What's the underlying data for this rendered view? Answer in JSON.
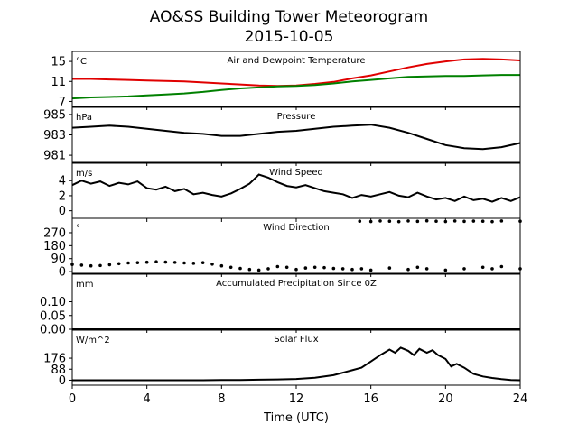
{
  "title": "AO&SS Building Tower Meteorogram",
  "subtitle": "2015-10-05",
  "chart_data": [
    {
      "type": "line",
      "title": "Air and Dewpoint Temperature",
      "unit": "°C",
      "xlim": [
        0,
        24
      ],
      "ylim": [
        6,
        17
      ],
      "yticks": [
        7,
        11,
        15
      ],
      "series": [
        {
          "color": "#e00000",
          "x": [
            0,
            1,
            2,
            3,
            4,
            5,
            6,
            7,
            8,
            9,
            10,
            11,
            12,
            13,
            14,
            15,
            16,
            17,
            18,
            19,
            20,
            21,
            22,
            23,
            24
          ],
          "y": [
            11.5,
            11.5,
            11.4,
            11.3,
            11.2,
            11.1,
            11.0,
            10.8,
            10.6,
            10.4,
            10.2,
            10.1,
            10.2,
            10.5,
            10.9,
            11.6,
            12.2,
            13.0,
            13.8,
            14.5,
            15.0,
            15.4,
            15.5,
            15.4,
            15.2
          ]
        },
        {
          "color": "#008000",
          "x": [
            0,
            1,
            2,
            3,
            4,
            5,
            6,
            7,
            8,
            9,
            10,
            11,
            12,
            13,
            14,
            15,
            16,
            17,
            18,
            19,
            20,
            21,
            22,
            23,
            24
          ],
          "y": [
            7.6,
            7.8,
            7.9,
            8.0,
            8.2,
            8.4,
            8.6,
            8.9,
            9.3,
            9.6,
            9.8,
            10.0,
            10.1,
            10.3,
            10.6,
            11.0,
            11.3,
            11.6,
            11.9,
            12.0,
            12.1,
            12.1,
            12.2,
            12.3,
            12.3
          ]
        }
      ]
    },
    {
      "type": "line",
      "title": "Pressure",
      "unit": "hPa",
      "xlim": [
        0,
        24
      ],
      "ylim": [
        980.3,
        985.7
      ],
      "yticks": [
        981,
        983,
        985
      ],
      "series": [
        {
          "color": "#000000",
          "x": [
            0,
            1,
            2,
            3,
            4,
            5,
            6,
            7,
            8,
            9,
            10,
            11,
            12,
            13,
            14,
            15,
            16,
            17,
            18,
            19,
            20,
            21,
            22,
            23,
            24
          ],
          "y": [
            983.7,
            983.8,
            983.9,
            983.8,
            983.6,
            983.4,
            983.2,
            983.1,
            982.9,
            982.9,
            983.1,
            983.3,
            983.4,
            983.6,
            983.8,
            983.9,
            984.0,
            983.7,
            983.2,
            982.6,
            982.0,
            981.7,
            981.6,
            981.8,
            982.2
          ]
        }
      ]
    },
    {
      "type": "line",
      "title": "Wind Speed",
      "unit": "m/s",
      "xlim": [
        0,
        24
      ],
      "ylim": [
        -1,
        6.3
      ],
      "yticks": [
        0,
        2,
        4
      ],
      "series": [
        {
          "color": "#000000",
          "x": [
            0,
            0.5,
            1,
            1.5,
            2,
            2.5,
            3,
            3.5,
            4,
            4.5,
            5,
            5.5,
            6,
            6.5,
            7,
            7.5,
            8,
            8.5,
            9,
            9.5,
            10,
            10.5,
            11,
            11.5,
            12,
            12.5,
            13,
            13.5,
            14,
            14.5,
            15,
            15.5,
            16,
            16.5,
            17,
            17.5,
            18,
            18.5,
            19,
            19.5,
            20,
            20.5,
            21,
            21.5,
            22,
            22.5,
            23,
            23.5,
            24
          ],
          "y": [
            3.4,
            4.0,
            3.6,
            3.9,
            3.3,
            3.7,
            3.5,
            3.9,
            3.0,
            2.8,
            3.2,
            2.6,
            2.9,
            2.2,
            2.4,
            2.1,
            1.9,
            2.3,
            2.9,
            3.6,
            4.8,
            4.4,
            3.8,
            3.3,
            3.1,
            3.4,
            3.0,
            2.6,
            2.4,
            2.2,
            1.7,
            2.1,
            1.9,
            2.2,
            2.5,
            2.0,
            1.8,
            2.4,
            1.9,
            1.5,
            1.7,
            1.3,
            1.9,
            1.4,
            1.6,
            1.2,
            1.7,
            1.3,
            1.8
          ]
        }
      ]
    },
    {
      "type": "scatter",
      "title": "Wind Direction",
      "unit": "°",
      "xlim": [
        0,
        24
      ],
      "ylim": [
        -12,
        370
      ],
      "yticks": [
        0,
        90,
        180,
        270
      ],
      "series": [
        {
          "color": "#000000",
          "x": [
            0,
            0.5,
            1,
            1.5,
            2,
            2.5,
            3,
            3.5,
            4,
            4.5,
            5,
            5.5,
            6,
            6.5,
            7,
            7.5,
            8,
            8.5,
            9,
            9.5,
            10,
            10.5,
            11,
            11.5,
            12,
            12.5,
            13,
            13.5,
            14,
            14.5,
            15,
            15.5,
            16,
            17,
            18,
            18.5,
            19,
            20,
            21,
            22,
            22.5,
            23,
            24
          ],
          "y": [
            50,
            45,
            40,
            42,
            48,
            55,
            60,
            62,
            65,
            68,
            66,
            64,
            60,
            58,
            62,
            52,
            40,
            30,
            22,
            15,
            10,
            20,
            35,
            30,
            15,
            25,
            30,
            28,
            22,
            20,
            15,
            20,
            10,
            25,
            15,
            30,
            20,
            10,
            20,
            30,
            20,
            35,
            20
          ]
        },
        {
          "color": "#000000",
          "x": [
            15.4,
            16,
            16.5,
            17,
            17.5,
            18,
            18.5,
            19,
            19.5,
            20,
            20.5,
            21,
            21.5,
            22,
            22.5,
            23,
            24
          ],
          "y": [
            350,
            348,
            352,
            350,
            347,
            352,
            349,
            353,
            350,
            348,
            352,
            349,
            351,
            350,
            347,
            352,
            350
          ]
        }
      ]
    },
    {
      "type": "line",
      "title": "Accumulated Precipitation Since 0Z",
      "unit": "mm",
      "xlim": [
        0,
        24
      ],
      "ylim": [
        0,
        0.2
      ],
      "yticks": [
        0,
        0.05,
        0.1
      ],
      "yticklabels": [
        "0.00",
        "0.05",
        "0.10"
      ],
      "series": [
        {
          "color": "#000000",
          "x": [
            0,
            24
          ],
          "y": [
            0,
            0
          ]
        }
      ]
    },
    {
      "type": "line",
      "title": "Solar Flux",
      "unit": "W/m^2",
      "xlim": [
        0,
        24
      ],
      "ylim": [
        -40,
        400
      ],
      "yticks": [
        0,
        88,
        176
      ],
      "xlabel": "Time (UTC)",
      "xticks": [
        0,
        4,
        8,
        12,
        16,
        20,
        24
      ],
      "series": [
        {
          "color": "#000000",
          "x": [
            0,
            6,
            7,
            8,
            9,
            10,
            11,
            12,
            13,
            14,
            14.5,
            15,
            15.5,
            16,
            16.5,
            17,
            17.3,
            17.6,
            18,
            18.3,
            18.6,
            19,
            19.3,
            19.6,
            20,
            20.3,
            20.6,
            21,
            21.5,
            22,
            22.5,
            23,
            23.5,
            24
          ],
          "y": [
            0,
            0,
            0,
            1,
            2,
            4,
            6,
            10,
            20,
            40,
            60,
            80,
            100,
            150,
            200,
            245,
            220,
            260,
            235,
            200,
            250,
            220,
            240,
            200,
            170,
            110,
            130,
            100,
            50,
            30,
            18,
            8,
            2,
            0
          ]
        }
      ]
    }
  ]
}
